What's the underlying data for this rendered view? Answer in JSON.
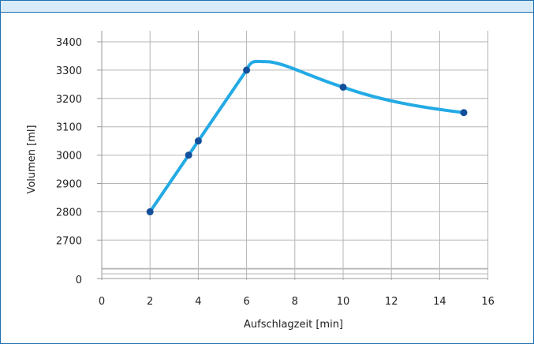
{
  "chart_data": {
    "type": "line",
    "xlabel": "Aufschlagzeit [min]",
    "ylabel": "Volumen [ml]",
    "xlim": [
      0,
      16
    ],
    "ylim": [
      2600,
      3400
    ],
    "y_axis_break": true,
    "y_baseline_label": "0",
    "x_ticks": [
      0,
      2,
      4,
      6,
      8,
      10,
      12,
      14,
      16
    ],
    "y_ticks": [
      2700,
      2800,
      2900,
      3000,
      3100,
      3200,
      3300,
      3400
    ],
    "grid": true,
    "series": [
      {
        "points": [
          {
            "x": 2,
            "y": 2800
          },
          {
            "x": 3.6,
            "y": 3000
          },
          {
            "x": 4,
            "y": 3050
          },
          {
            "x": 6,
            "y": 3300
          },
          {
            "x": 10,
            "y": 3240
          },
          {
            "x": 15,
            "y": 3150
          }
        ],
        "peak_estimate": {
          "x": 6.8,
          "y": 3330
        }
      }
    ],
    "colors": {
      "line": "#23aae5",
      "marker": "#134f9a",
      "grid": "#b5b5b5",
      "frame": "#1d6fb0",
      "header": "#d8ebf8"
    }
  }
}
